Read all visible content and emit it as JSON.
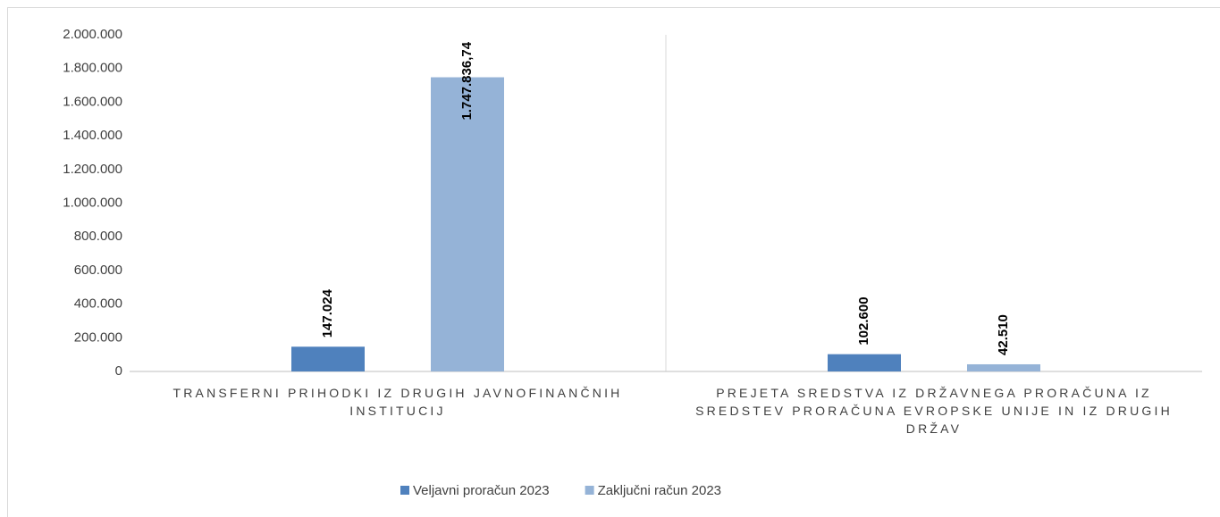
{
  "chart_data": {
    "type": "bar",
    "categories": [
      "TRANSFERNI PRIHODKI IZ DRUGIH JAVNOFINANČNIH INSTITUCIJ",
      "PREJETA SREDSTVA IZ DRŽAVNEGA PRORAČUNA IZ SREDSTEV PRORAČUNA EVROPSKE UNIJE IN IZ DRUGIH DRŽAV"
    ],
    "series": [
      {
        "name": "Veljavni proračun 2023",
        "color": "#4f81bd",
        "values": [
          147024,
          102600
        ],
        "value_labels": [
          "147.024",
          "102.600"
        ]
      },
      {
        "name": "Zaključni račun 2023",
        "color": "#95b3d7",
        "values": [
          1747836.74,
          42510
        ],
        "value_labels": [
          "1.747.836,74",
          "42.510"
        ]
      }
    ],
    "ylim": [
      0,
      2000000
    ],
    "yticks": [
      0,
      {
        "value": 200000,
        "label": "200.000"
      },
      {
        "value": 400000,
        "label": "400.000"
      },
      {
        "value": 600000,
        "label": "600.000"
      },
      {
        "value": 800000,
        "label": "800.000"
      },
      {
        "value": 1000000,
        "label": "1.000.000"
      },
      {
        "value": 1200000,
        "label": "1.200.000"
      },
      {
        "value": 1400000,
        "label": "1.400.000"
      },
      {
        "value": 1600000,
        "label": "1.600.000"
      },
      {
        "value": 1800000,
        "label": "1.800.000"
      },
      {
        "value": 2000000,
        "label": "2.000.000"
      }
    ],
    "legend": "bottom"
  }
}
